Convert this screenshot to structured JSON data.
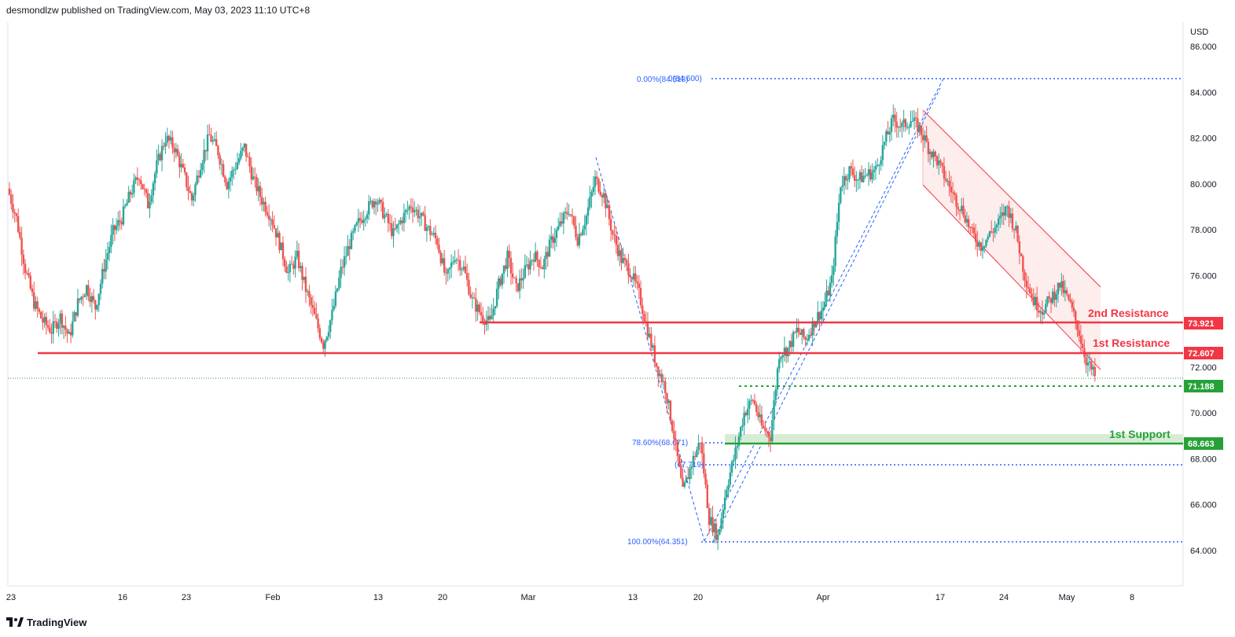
{
  "header": {
    "publisher_text": "desmondlzw published on TradingView.com, May 03, 2023 11:10 UTC+8"
  },
  "footer": {
    "brand": "TradingView",
    "logo_icon": "tradingview-logo-icon"
  },
  "colors": {
    "resistance": "#f23645",
    "support": "#26a138",
    "fib": "#2962ff",
    "candle_up": "#26a69a",
    "candle_down": "#ef5350",
    "channel_fill": "#fde9e9"
  },
  "chart_data": {
    "type": "candlestick",
    "currency_label": "USD",
    "y_ticks": [
      "86.000",
      "84.000",
      "82.000",
      "80.000",
      "78.000",
      "76.000",
      "72.000",
      "70.000",
      "68.000",
      "66.000",
      "64.000"
    ],
    "x_ticks": [
      "23",
      "16",
      "23",
      "Feb",
      "13",
      "20",
      "Mar",
      "13",
      "20",
      "Apr",
      "17",
      "24",
      "May",
      "8"
    ],
    "ylim": [
      62.0,
      87.0
    ],
    "price_series": [
      79.8,
      78.5,
      76.3,
      74.8,
      74.0,
      73.6,
      74.2,
      73.3,
      74.8,
      75.5,
      74.6,
      76.4,
      77.9,
      78.5,
      79.6,
      80.4,
      79.1,
      80.8,
      82.0,
      81.6,
      80.5,
      79.3,
      80.9,
      82.1,
      81.4,
      80.0,
      80.8,
      81.6,
      80.2,
      79.3,
      78.6,
      77.4,
      76.1,
      76.8,
      75.4,
      74.2,
      73.0,
      74.3,
      76.2,
      77.4,
      78.3,
      78.9,
      79.4,
      78.6,
      77.8,
      78.5,
      79.1,
      78.6,
      78.0,
      77.5,
      75.8,
      76.9,
      76.3,
      74.9,
      74.3,
      73.9,
      75.6,
      76.8,
      75.4,
      76.2,
      76.9,
      76.4,
      77.5,
      78.2,
      78.9,
      77.6,
      78.6,
      80.2,
      79.5,
      77.8,
      76.7,
      76.2,
      75.2,
      73.6,
      72.1,
      71.1,
      69.0,
      66.5,
      67.8,
      68.8,
      65.4,
      64.6,
      66.8,
      68.3,
      70.0,
      70.6,
      69.4,
      69.0,
      72.6,
      72.8,
      73.6,
      73.2,
      74.0,
      74.6,
      75.8,
      80.0,
      80.6,
      80.2,
      80.4,
      80.6,
      81.8,
      82.8,
      82.5,
      82.8,
      82.4,
      81.6,
      81.0,
      80.2,
      79.4,
      78.8,
      77.8,
      77.3,
      77.8,
      78.3,
      79.0,
      77.9,
      76.0,
      74.9,
      74.5,
      75.0,
      75.6,
      74.9,
      73.8,
      72.3,
      71.6
    ],
    "fib_levels": [
      {
        "label": "0.00%(84.518)",
        "value": 84.518
      },
      {
        "label": "0(84.600)",
        "value": 84.6
      },
      {
        "label": "78.60%(68.671)",
        "value": 68.671
      },
      {
        "label": "(67.719)",
        "value": 67.719
      },
      {
        "label": "100.00%(64.351)",
        "value": 64.351
      }
    ],
    "levels": [
      {
        "name": "2nd Resistance",
        "value": 73.921,
        "badge": "73.921",
        "kind": "resistance"
      },
      {
        "name": "1st Resistance",
        "value": 72.607,
        "badge": "72.607",
        "kind": "resistance"
      },
      {
        "name": "",
        "value": 71.188,
        "badge": "71.188",
        "kind": "intermediate-support"
      },
      {
        "name": "1st Support",
        "value": 68.663,
        "badge": "68.663",
        "kind": "support"
      }
    ],
    "grid": false,
    "legend": "none"
  }
}
